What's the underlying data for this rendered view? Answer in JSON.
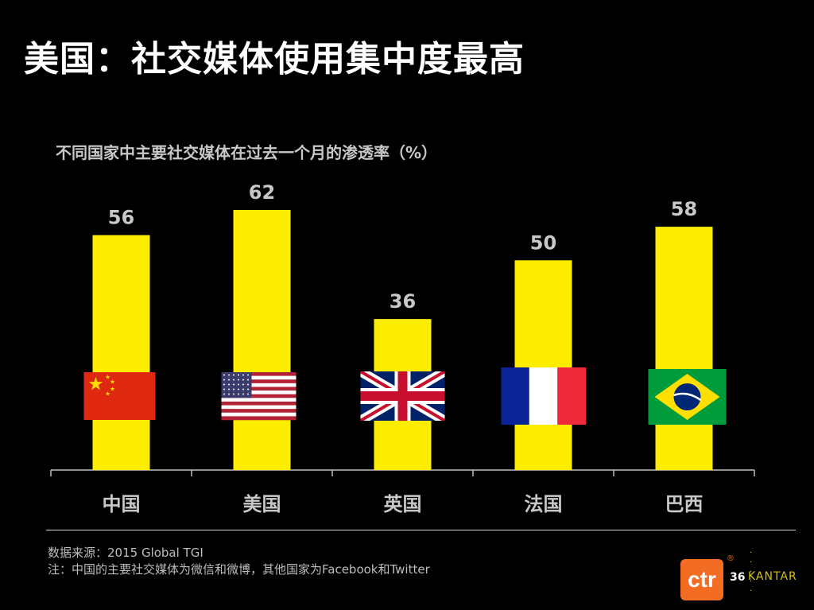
{
  "slide": {
    "title": "美国：社交媒体使用集中度最高",
    "subtitle": "不同国家中主要社交媒体在过去一个月的渗透率（%）",
    "source_line1": "数据来源：2015 Global TGI",
    "source_line2": "注：中国的主要社交媒体为微信和微博，其他国家为Facebook和Twitter",
    "page_number": "36",
    "logo_ctr": "ctr",
    "logo_reg": "®",
    "logo_kantar": "KANTAR"
  },
  "chart_data": {
    "type": "bar",
    "categories": [
      "中国",
      "美国",
      "英国",
      "法国",
      "巴西"
    ],
    "values": [
      56,
      62,
      36,
      50,
      58
    ],
    "flags": [
      "china-flag-icon",
      "usa-flag-icon",
      "uk-flag-icon",
      "france-flag-icon",
      "brazil-flag-icon"
    ],
    "title": "不同国家中主要社交媒体在过去一个月的渗透率（%）",
    "ylim": [
      0,
      62
    ],
    "bar_color": "#ffed00",
    "label_color": "#c8c8c8",
    "grid": false
  }
}
